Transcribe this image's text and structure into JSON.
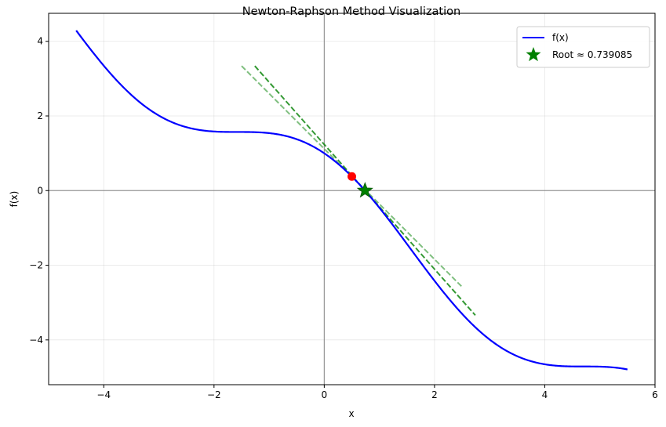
{
  "chart_data": {
    "type": "line",
    "title": "Newton-Raphson Method Visualization",
    "xlabel": "x",
    "ylabel": "f(x)",
    "xlim": [
      -5,
      6
    ],
    "ylim": [
      -5.2,
      4.75
    ],
    "xticks": [
      -4,
      -2,
      0,
      2,
      4,
      6
    ],
    "xtick_labels": [
      "−4",
      "−2",
      "0",
      "2",
      "4",
      "6"
    ],
    "yticks": [
      -4,
      -2,
      0,
      2,
      4
    ],
    "ytick_labels": [
      "−4",
      "−2",
      "0",
      "2",
      "4"
    ],
    "grid": true,
    "legend_position": "top-right",
    "colors": {
      "curve": "#0000ff",
      "tangent": "#008000",
      "iterate": "#ff0000",
      "root": "#008000",
      "axes_ref": "#808080"
    },
    "series": [
      {
        "name": "f(x)",
        "function": "cos(x) - x",
        "x_range": [
          -4.5,
          5.5
        ]
      }
    ],
    "tangent_lines": [
      {
        "x": [
          -1.5,
          2.5
        ],
        "y": [
          3.34,
          -2.58
        ],
        "alpha": 0.5
      },
      {
        "x": [
          -1.26,
          2.74
        ],
        "y": [
          3.34,
          -3.34
        ],
        "alpha": 0.8
      }
    ],
    "iterate_points": [
      {
        "x": 0.5,
        "y": 0.378
      }
    ],
    "root": {
      "name": "Root ≈ 0.739085",
      "x": 0.739085,
      "y": 0.0
    }
  }
}
